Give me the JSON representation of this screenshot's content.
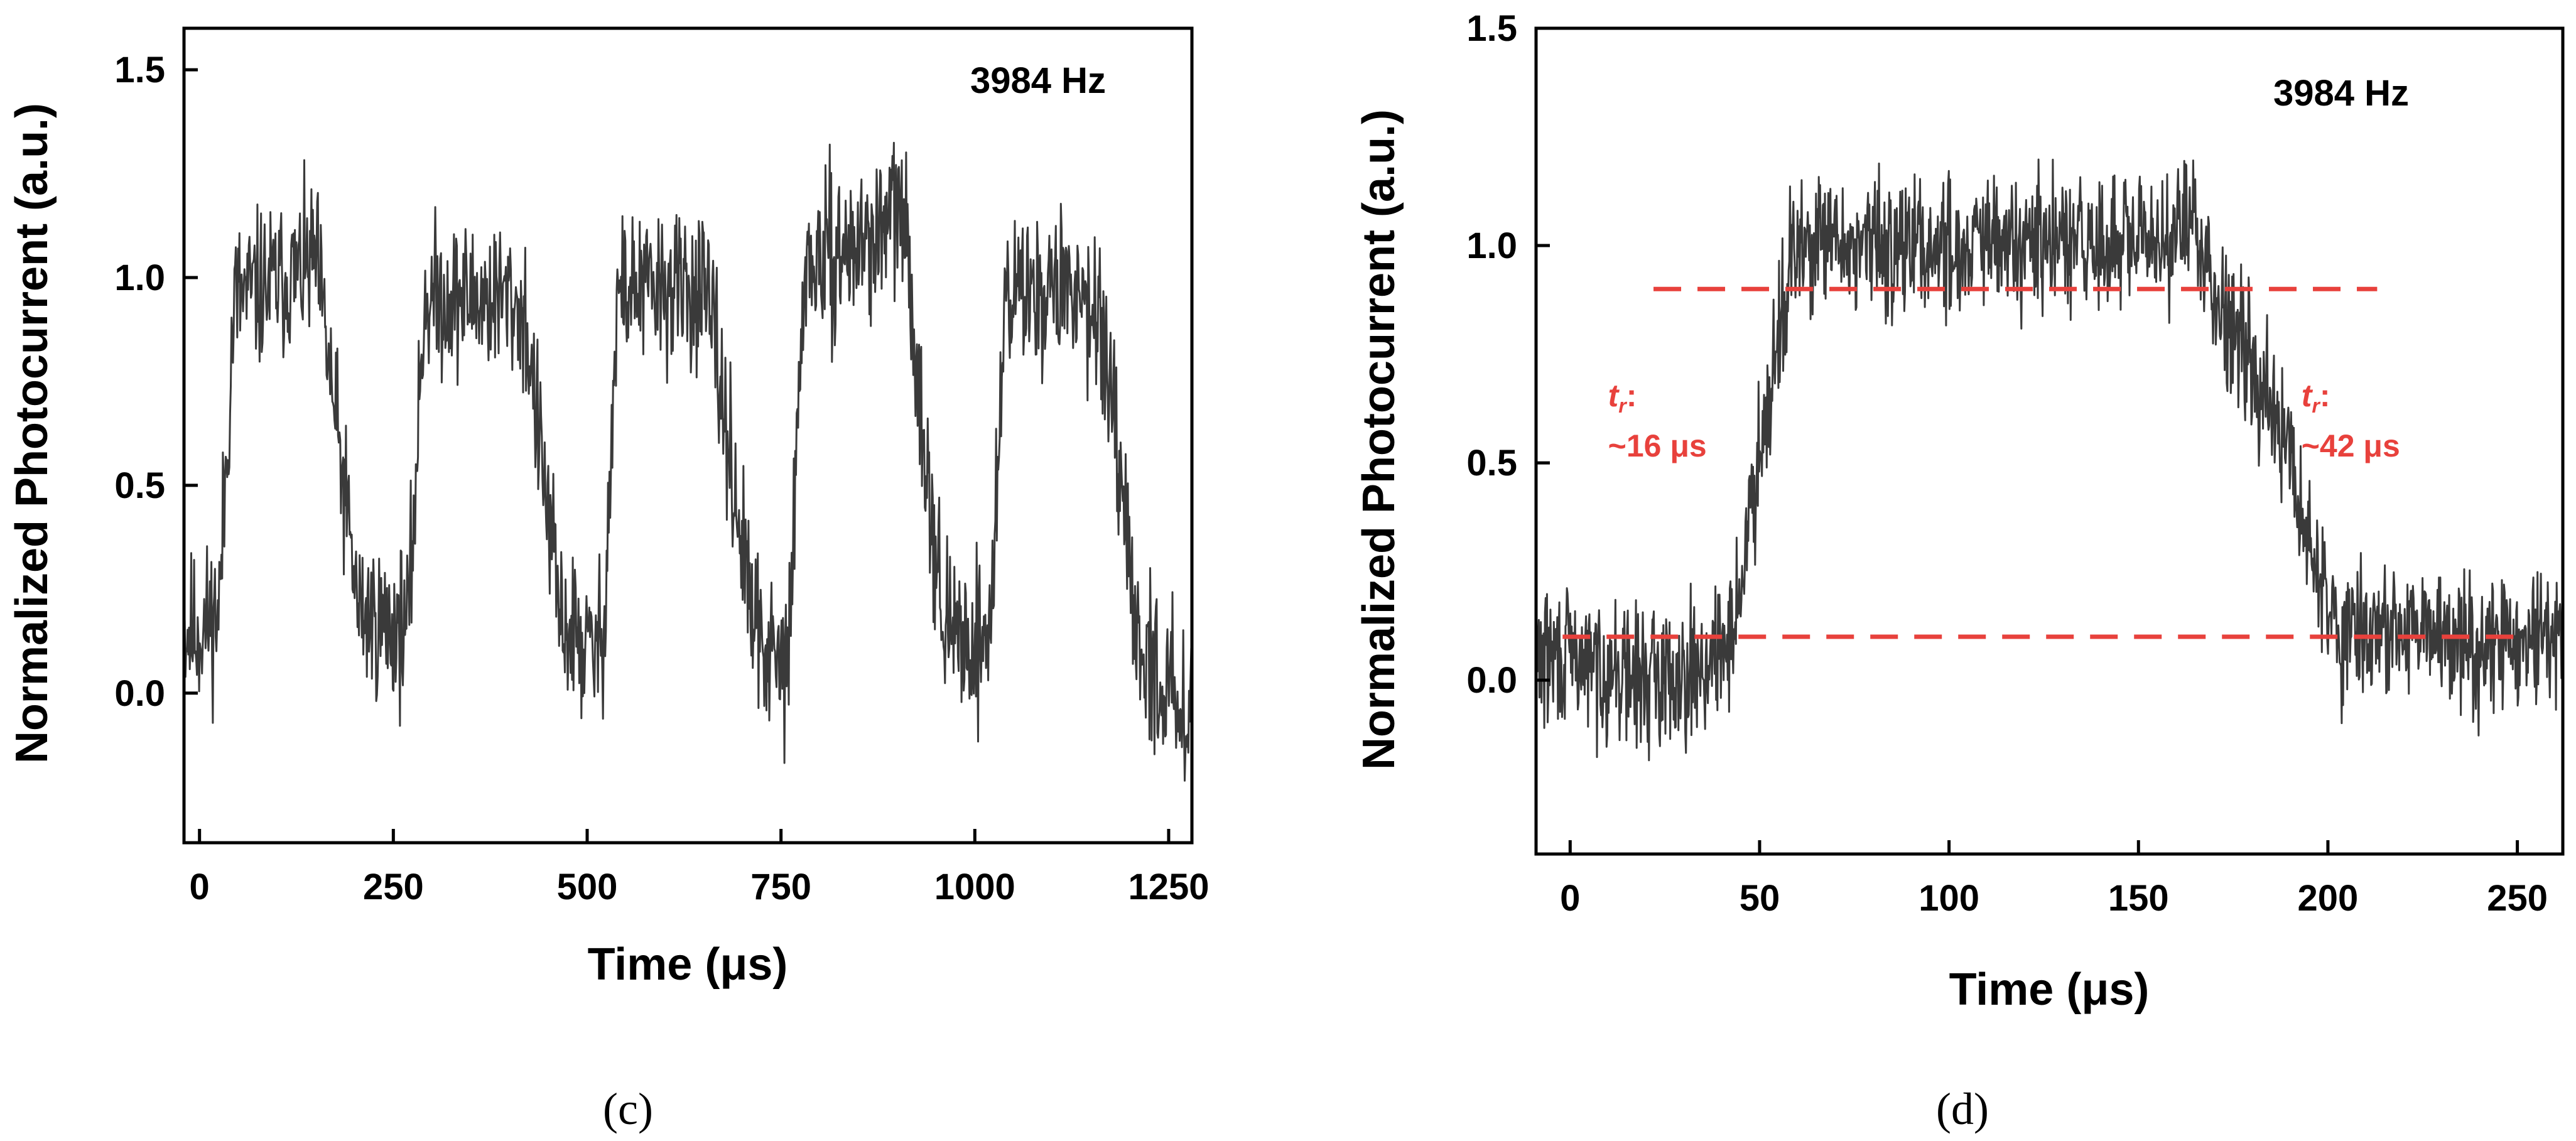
{
  "chart_data": [
    {
      "type": "line",
      "panel_label": "(c)",
      "title": "",
      "annotation_text": "3984 Hz",
      "xlabel": "Time (μs)",
      "ylabel": "Normalized Photocurrent (a.u.)",
      "xlim": [
        -20,
        1280
      ],
      "ylim": [
        -0.36,
        1.6
      ],
      "xticks": [
        0,
        250,
        500,
        750,
        1000,
        1250
      ],
      "xtick_labels": [
        "0",
        "250",
        "500",
        "750",
        "1000",
        "1250"
      ],
      "yticks": [
        0.0,
        0.5,
        1.0,
        1.5
      ],
      "ytick_labels": [
        "0.0",
        "0.5",
        "1.0",
        "1.5"
      ],
      "grid": false,
      "line_color": "#3a3a3a",
      "series": [
        {
          "name": "photocurrent",
          "x": [
            -20,
            0,
            25,
            45,
            90,
            140,
            150,
            205,
            250,
            270,
            290,
            400,
            420,
            465,
            500,
            520,
            540,
            645,
            660,
            715,
            750,
            760,
            780,
            875,
            905,
            960,
            1000,
            1020,
            1040,
            1140,
            1160,
            1210,
            1250,
            1280
          ],
          "values": [
            0.15,
            0.15,
            0.2,
            0.95,
            0.98,
            1.02,
            1.05,
            0.2,
            0.15,
            0.18,
            0.95,
            0.95,
            0.9,
            0.18,
            0.1,
            0.12,
            0.97,
            0.97,
            0.9,
            0.15,
            0.05,
            0.1,
            1.02,
            1.1,
            1.18,
            0.15,
            0.12,
            0.15,
            0.97,
            0.97,
            0.92,
            0.12,
            0.0,
            -0.02
          ],
          "noise_amplitude": 0.2
        }
      ]
    },
    {
      "type": "line",
      "panel_label": "(d)",
      "title": "",
      "annotation_text": "3984 Hz",
      "xlabel": "Time (μs)",
      "ylabel": "Normalized Photocurrent (a.u.)",
      "xlim": [
        -9,
        262
      ],
      "ylim": [
        -0.4,
        1.5
      ],
      "xticks": [
        0,
        50,
        100,
        150,
        200,
        250
      ],
      "xtick_labels": [
        "0",
        "50",
        "100",
        "150",
        "200",
        "250"
      ],
      "yticks": [
        0.0,
        0.5,
        1.0,
        1.5
      ],
      "ytick_labels": [
        "0.0",
        "0.5",
        "1.0",
        "1.5"
      ],
      "grid": false,
      "line_color": "#3a3a3a",
      "series": [
        {
          "name": "photocurrent",
          "x": [
            -9,
            0,
            20,
            40,
            45,
            50,
            58,
            62,
            100,
            150,
            165,
            170,
            180,
            190,
            198,
            202,
            230,
            262
          ],
          "values": [
            0.05,
            0.05,
            0.0,
            0.05,
            0.2,
            0.55,
            0.95,
            1.0,
            1.0,
            1.0,
            1.05,
            0.9,
            0.75,
            0.5,
            0.22,
            0.12,
            0.1,
            0.08
          ],
          "noise_amplitude": 0.17
        }
      ],
      "reference_lines": [
        {
          "name": "90% level",
          "y": 0.9,
          "x_start": 22,
          "x_end": 213,
          "color": "#e8413c",
          "style": "dashed"
        },
        {
          "name": "10% level",
          "y": 0.1,
          "x_start": -2,
          "x_end": 250,
          "color": "#e8413c",
          "style": "dashed"
        }
      ],
      "annotations": [
        {
          "name": "rise-time",
          "symbol": "t",
          "subscript": "r",
          "suffix": ":",
          "value_text": "~16 μs",
          "x": 10,
          "y": 0.63,
          "color": "#e8413c"
        },
        {
          "name": "fall-time",
          "symbol": "t",
          "subscript": "r",
          "suffix": ":",
          "value_text": "~42 μs",
          "x": 193,
          "y": 0.63,
          "color": "#e8413c"
        }
      ]
    }
  ]
}
